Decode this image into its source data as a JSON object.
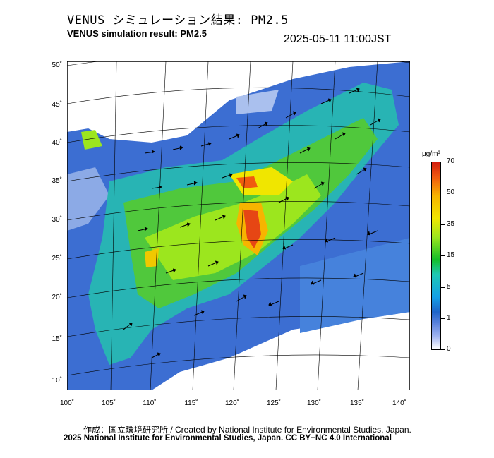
{
  "title_jp": "VENUS シミュレーション結果: PM2.5",
  "title_en": "VENUS simulation result: PM2.5",
  "timestamp": "2025-05-11 11:00JST",
  "latitude_labels": [
    "50˚",
    "45˚",
    "40˚",
    "35˚",
    "30˚",
    "25˚",
    "20˚",
    "15˚",
    "10˚"
  ],
  "longitude_labels": [
    "100˚",
    "105˚",
    "110˚",
    "115˚",
    "120˚",
    "125˚",
    "130˚",
    "135˚",
    "140˚"
  ],
  "colorbar": {
    "unit": "μg/m³",
    "labels": [
      "70",
      "50",
      "35",
      "15",
      "5",
      "1",
      "0"
    ],
    "colors": [
      "#d21e0f",
      "#f05a0f",
      "#f7b400",
      "#f0e600",
      "#9ce61e",
      "#14be28",
      "#1ec8b4",
      "#14a0e6",
      "#1e64c8",
      "#a0b4f0",
      "#ffffff"
    ]
  },
  "credit_line_1": "作成：国立環境研究所 / Created by National Institute for Environmental Studies, Japan.",
  "credit_line_2": "2025 National Institute for Environmental Studies, Japan. CC BY−NC 4.0 International"
}
